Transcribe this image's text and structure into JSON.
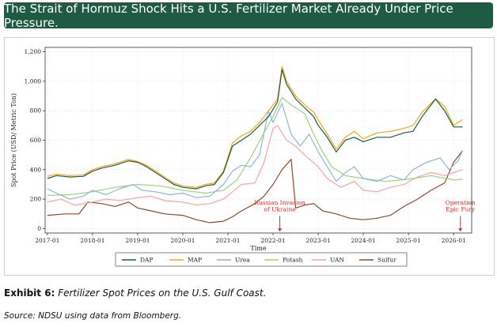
{
  "banner": {
    "title": "The Strait of Hormuz Shock Hits a U.S. Fertilizer Market Already Under Price Pressure."
  },
  "caption": {
    "label": "Exhibit 6:",
    "text": "Fertilizer Spot Prices on the U.S. Gulf Coast."
  },
  "source": {
    "text": "Source: NDSU using data from Bloomberg."
  },
  "chart_data": {
    "type": "line",
    "title": "",
    "xlabel": "Time",
    "ylabel": "Spot Price (USD/ Metric Ton)",
    "xlim": [
      2016.95,
      2026.4
    ],
    "ylim": [
      -30,
      1230
    ],
    "x_ticks": [
      2017,
      2018,
      2019,
      2020,
      2021,
      2022,
      2023,
      2024,
      2025,
      2026
    ],
    "x_tick_labels": [
      "2017-01",
      "2018-01",
      "2019-01",
      "2020-01",
      "2021-01",
      "2022-01",
      "2023-01",
      "2024-01",
      "2025-01",
      "2026-01"
    ],
    "y_ticks": [
      0,
      200,
      400,
      600,
      800,
      1000,
      1200
    ],
    "y_tick_labels": [
      "0",
      "200",
      "400",
      "600",
      "800",
      "1,000",
      "1,200"
    ],
    "grid": true,
    "legend_position": "bottom",
    "annotations": [
      {
        "id": "russia",
        "lines": [
          "Russian Invasion",
          "of Ukraine"
        ],
        "x": 2022.15,
        "y_text": 120,
        "y_arrow_from": 85,
        "y_arrow_to": -20,
        "color": "#d62728"
      },
      {
        "id": "epic",
        "lines": [
          "Operation",
          "Epic Fury"
        ],
        "x": 2026.15,
        "y_text": 120,
        "y_arrow_from": 85,
        "y_arrow_to": -20,
        "color": "#d62728"
      }
    ],
    "series": [
      {
        "name": "DAP",
        "color": "#1f5b43",
        "points": [
          [
            2017.0,
            340
          ],
          [
            2017.2,
            360
          ],
          [
            2017.5,
            350
          ],
          [
            2017.8,
            355
          ],
          [
            2018.0,
            390
          ],
          [
            2018.2,
            410
          ],
          [
            2018.5,
            430
          ],
          [
            2018.8,
            460
          ],
          [
            2019.0,
            450
          ],
          [
            2019.2,
            420
          ],
          [
            2019.5,
            360
          ],
          [
            2019.8,
            300
          ],
          [
            2020.0,
            280
          ],
          [
            2020.3,
            270
          ],
          [
            2020.5,
            290
          ],
          [
            2020.7,
            300
          ],
          [
            2020.9,
            380
          ],
          [
            2021.1,
            560
          ],
          [
            2021.3,
            600
          ],
          [
            2021.5,
            640
          ],
          [
            2021.7,
            700
          ],
          [
            2021.9,
            760
          ],
          [
            2022.1,
            860
          ],
          [
            2022.2,
            1080
          ],
          [
            2022.3,
            980
          ],
          [
            2022.5,
            880
          ],
          [
            2022.7,
            820
          ],
          [
            2022.9,
            760
          ],
          [
            2023.0,
            700
          ],
          [
            2023.2,
            620
          ],
          [
            2023.4,
            520
          ],
          [
            2023.6,
            600
          ],
          [
            2023.8,
            620
          ],
          [
            2024.0,
            590
          ],
          [
            2024.3,
            620
          ],
          [
            2024.6,
            620
          ],
          [
            2024.9,
            650
          ],
          [
            2025.1,
            660
          ],
          [
            2025.3,
            760
          ],
          [
            2025.6,
            880
          ],
          [
            2025.8,
            800
          ],
          [
            2026.0,
            690
          ],
          [
            2026.2,
            690
          ]
        ]
      },
      {
        "name": "MAP",
        "color": "#f0a81c",
        "points": [
          [
            2017.0,
            355
          ],
          [
            2017.2,
            370
          ],
          [
            2017.5,
            360
          ],
          [
            2017.8,
            365
          ],
          [
            2018.0,
            400
          ],
          [
            2018.2,
            420
          ],
          [
            2018.5,
            440
          ],
          [
            2018.8,
            470
          ],
          [
            2019.0,
            455
          ],
          [
            2019.2,
            430
          ],
          [
            2019.5,
            370
          ],
          [
            2019.8,
            310
          ],
          [
            2020.0,
            290
          ],
          [
            2020.3,
            280
          ],
          [
            2020.5,
            300
          ],
          [
            2020.7,
            310
          ],
          [
            2020.9,
            390
          ],
          [
            2021.1,
            580
          ],
          [
            2021.3,
            630
          ],
          [
            2021.5,
            660
          ],
          [
            2021.7,
            720
          ],
          [
            2021.9,
            800
          ],
          [
            2022.1,
            880
          ],
          [
            2022.2,
            1100
          ],
          [
            2022.3,
            1000
          ],
          [
            2022.5,
            900
          ],
          [
            2022.7,
            840
          ],
          [
            2022.9,
            790
          ],
          [
            2023.0,
            740
          ],
          [
            2023.2,
            640
          ],
          [
            2023.4,
            540
          ],
          [
            2023.6,
            620
          ],
          [
            2023.8,
            660
          ],
          [
            2024.0,
            610
          ],
          [
            2024.3,
            650
          ],
          [
            2024.6,
            660
          ],
          [
            2024.9,
            680
          ],
          [
            2025.1,
            700
          ],
          [
            2025.3,
            790
          ],
          [
            2025.6,
            880
          ],
          [
            2025.8,
            830
          ],
          [
            2026.0,
            700
          ],
          [
            2026.2,
            740
          ]
        ]
      },
      {
        "name": "Urea",
        "color": "#8fb6d9",
        "points": [
          [
            2017.0,
            270
          ],
          [
            2017.2,
            240
          ],
          [
            2017.5,
            200
          ],
          [
            2017.8,
            220
          ],
          [
            2018.0,
            260
          ],
          [
            2018.3,
            230
          ],
          [
            2018.6,
            270
          ],
          [
            2018.9,
            300
          ],
          [
            2019.1,
            260
          ],
          [
            2019.4,
            250
          ],
          [
            2019.7,
            230
          ],
          [
            2020.0,
            240
          ],
          [
            2020.3,
            210
          ],
          [
            2020.6,
            220
          ],
          [
            2020.9,
            300
          ],
          [
            2021.1,
            390
          ],
          [
            2021.3,
            430
          ],
          [
            2021.5,
            420
          ],
          [
            2021.7,
            500
          ],
          [
            2021.9,
            800
          ],
          [
            2022.0,
            720
          ],
          [
            2022.2,
            850
          ],
          [
            2022.4,
            640
          ],
          [
            2022.6,
            560
          ],
          [
            2022.8,
            640
          ],
          [
            2023.0,
            520
          ],
          [
            2023.2,
            420
          ],
          [
            2023.4,
            320
          ],
          [
            2023.6,
            380
          ],
          [
            2023.8,
            420
          ],
          [
            2024.0,
            340
          ],
          [
            2024.3,
            320
          ],
          [
            2024.6,
            360
          ],
          [
            2024.9,
            330
          ],
          [
            2025.1,
            400
          ],
          [
            2025.4,
            450
          ],
          [
            2025.7,
            480
          ],
          [
            2025.9,
            400
          ],
          [
            2026.1,
            460
          ],
          [
            2026.2,
            530
          ]
        ]
      },
      {
        "name": "Potash",
        "color": "#9bd47f",
        "points": [
          [
            2017.0,
            225
          ],
          [
            2017.5,
            230
          ],
          [
            2018.0,
            250
          ],
          [
            2018.5,
            280
          ],
          [
            2019.0,
            300
          ],
          [
            2019.5,
            290
          ],
          [
            2020.0,
            260
          ],
          [
            2020.5,
            240
          ],
          [
            2020.9,
            260
          ],
          [
            2021.2,
            330
          ],
          [
            2021.5,
            480
          ],
          [
            2021.8,
            650
          ],
          [
            2022.0,
            760
          ],
          [
            2022.2,
            890
          ],
          [
            2022.4,
            840
          ],
          [
            2022.7,
            780
          ],
          [
            2022.9,
            640
          ],
          [
            2023.1,
            520
          ],
          [
            2023.3,
            420
          ],
          [
            2023.6,
            360
          ],
          [
            2024.0,
            340
          ],
          [
            2024.5,
            320
          ],
          [
            2025.0,
            335
          ],
          [
            2025.5,
            360
          ],
          [
            2026.0,
            330
          ],
          [
            2026.2,
            335
          ]
        ]
      },
      {
        "name": "UAN",
        "color": "#f4a6a6",
        "points": [
          [
            2017.0,
            180
          ],
          [
            2017.3,
            200
          ],
          [
            2017.6,
            160
          ],
          [
            2018.0,
            180
          ],
          [
            2018.3,
            200
          ],
          [
            2018.6,
            190
          ],
          [
            2019.0,
            210
          ],
          [
            2019.3,
            220
          ],
          [
            2019.6,
            190
          ],
          [
            2020.0,
            180
          ],
          [
            2020.3,
            160
          ],
          [
            2020.6,
            170
          ],
          [
            2020.9,
            200
          ],
          [
            2021.1,
            250
          ],
          [
            2021.3,
            300
          ],
          [
            2021.6,
            310
          ],
          [
            2021.8,
            450
          ],
          [
            2022.0,
            680
          ],
          [
            2022.1,
            700
          ],
          [
            2022.3,
            600
          ],
          [
            2022.5,
            560
          ],
          [
            2022.7,
            500
          ],
          [
            2023.0,
            420
          ],
          [
            2023.2,
            340
          ],
          [
            2023.5,
            280
          ],
          [
            2023.8,
            320
          ],
          [
            2024.0,
            260
          ],
          [
            2024.3,
            250
          ],
          [
            2024.6,
            280
          ],
          [
            2024.9,
            300
          ],
          [
            2025.2,
            350
          ],
          [
            2025.5,
            380
          ],
          [
            2025.8,
            360
          ],
          [
            2026.0,
            380
          ],
          [
            2026.2,
            400
          ]
        ]
      },
      {
        "name": "Sulfur",
        "color": "#8a4b2a",
        "points": [
          [
            2017.0,
            90
          ],
          [
            2017.4,
            100
          ],
          [
            2017.7,
            100
          ],
          [
            2017.9,
            180
          ],
          [
            2018.2,
            170
          ],
          [
            2018.5,
            150
          ],
          [
            2018.8,
            180
          ],
          [
            2019.0,
            140
          ],
          [
            2019.3,
            120
          ],
          [
            2019.6,
            100
          ],
          [
            2020.0,
            90
          ],
          [
            2020.3,
            60
          ],
          [
            2020.6,
            40
          ],
          [
            2020.9,
            50
          ],
          [
            2021.1,
            80
          ],
          [
            2021.3,
            120
          ],
          [
            2021.6,
            170
          ],
          [
            2021.8,
            220
          ],
          [
            2022.0,
            300
          ],
          [
            2022.2,
            400
          ],
          [
            2022.4,
            470
          ],
          [
            2022.5,
            140
          ],
          [
            2022.7,
            160
          ],
          [
            2022.9,
            170
          ],
          [
            2023.1,
            120
          ],
          [
            2023.4,
            100
          ],
          [
            2023.7,
            70
          ],
          [
            2024.0,
            60
          ],
          [
            2024.3,
            70
          ],
          [
            2024.6,
            90
          ],
          [
            2024.9,
            150
          ],
          [
            2025.2,
            200
          ],
          [
            2025.5,
            260
          ],
          [
            2025.8,
            310
          ],
          [
            2026.0,
            450
          ],
          [
            2026.2,
            530
          ]
        ]
      }
    ]
  }
}
